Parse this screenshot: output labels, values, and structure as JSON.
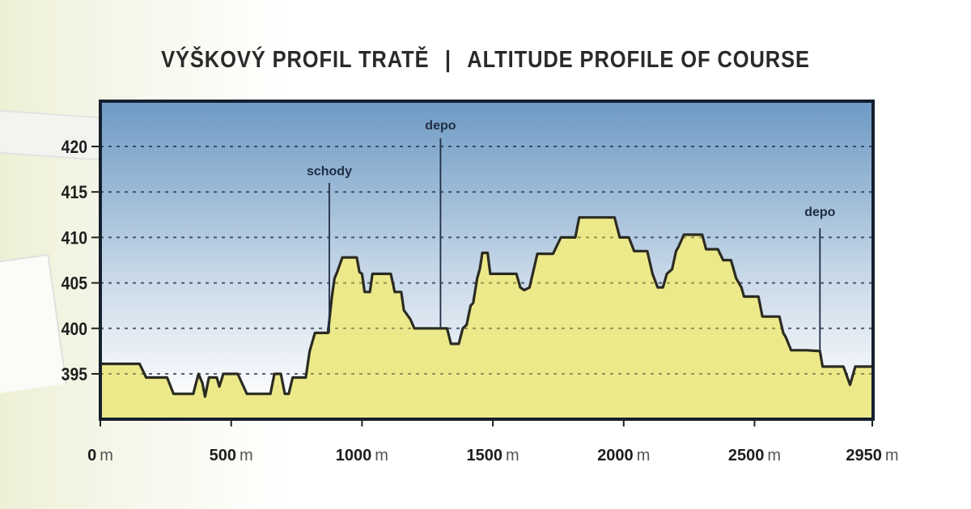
{
  "title": {
    "czech": "VÝŠKOVÝ PROFIL TRATĚ",
    "separator": "|",
    "english": "ALTITUDE PROFILE OF COURSE"
  },
  "colors": {
    "sky_top": "#6d9ac4",
    "sky_bottom": "#ffffff",
    "fill": "#ece98a",
    "line": "#2b2b22",
    "frame": "#15202e",
    "grid": "#1f2d44"
  },
  "chart_data": {
    "type": "area",
    "title": "VÝŠKOVÝ PROFIL TRATĚ | ALTITUDE PROFILE OF COURSE",
    "xlabel": "",
    "ylabel": "",
    "x_unit": "m",
    "xlim": [
      0,
      2950
    ],
    "ylim": [
      391,
      424
    ],
    "grid": "horizontal dashed",
    "x_ticks": [
      {
        "value": 0,
        "label": "0",
        "unit": "m"
      },
      {
        "value": 500,
        "label": "500",
        "unit": "m"
      },
      {
        "value": 1000,
        "label": "1000",
        "unit": "m"
      },
      {
        "value": 1500,
        "label": "1500",
        "unit": "m"
      },
      {
        "value": 2000,
        "label": "2000",
        "unit": "m"
      },
      {
        "value": 2500,
        "label": "2500",
        "unit": "m"
      },
      {
        "value": 2950,
        "label": "2950",
        "unit": "m"
      }
    ],
    "y_ticks": [
      395,
      400,
      405,
      410,
      415,
      420
    ],
    "annotations": [
      {
        "label": "schody",
        "x": 875,
        "label_y": 416.5,
        "line_top": 416,
        "line_bottom": 399.5
      },
      {
        "label": "depo",
        "x": 1300,
        "label_y": 421.5,
        "line_top": 420.9,
        "line_bottom": 400
      },
      {
        "label": "depo",
        "x": 2750,
        "label_y": 412.0,
        "line_top": 411,
        "line_bottom": 397.5
      }
    ],
    "profile": [
      [
        0,
        396.1
      ],
      [
        150,
        396.1
      ],
      [
        175,
        394.6
      ],
      [
        255,
        394.6
      ],
      [
        280,
        392.8
      ],
      [
        355,
        392.8
      ],
      [
        375,
        395.0
      ],
      [
        390,
        394.0
      ],
      [
        400,
        392.5
      ],
      [
        415,
        394.6
      ],
      [
        445,
        394.6
      ],
      [
        455,
        393.6
      ],
      [
        470,
        395.0
      ],
      [
        525,
        395.0
      ],
      [
        560,
        392.8
      ],
      [
        650,
        392.8
      ],
      [
        665,
        395.0
      ],
      [
        690,
        395.0
      ],
      [
        705,
        392.8
      ],
      [
        720,
        392.8
      ],
      [
        735,
        394.6
      ],
      [
        785,
        394.6
      ],
      [
        800,
        397.5
      ],
      [
        820,
        399.5
      ],
      [
        870,
        399.5
      ],
      [
        885,
        403.5
      ],
      [
        895,
        405.5
      ],
      [
        905,
        406.2
      ],
      [
        925,
        407.8
      ],
      [
        980,
        407.8
      ],
      [
        990,
        406.2
      ],
      [
        1000,
        406.0
      ],
      [
        1010,
        404.0
      ],
      [
        1030,
        404.0
      ],
      [
        1040,
        406.0
      ],
      [
        1110,
        406.0
      ],
      [
        1125,
        404.0
      ],
      [
        1150,
        404.0
      ],
      [
        1160,
        402.0
      ],
      [
        1185,
        401.0
      ],
      [
        1200,
        400.0
      ],
      [
        1325,
        400.0
      ],
      [
        1340,
        398.3
      ],
      [
        1370,
        398.3
      ],
      [
        1385,
        400.0
      ],
      [
        1400,
        400.4
      ],
      [
        1415,
        402.5
      ],
      [
        1425,
        402.8
      ],
      [
        1440,
        405.5
      ],
      [
        1450,
        406.5
      ],
      [
        1460,
        408.3
      ],
      [
        1480,
        408.3
      ],
      [
        1490,
        406.0
      ],
      [
        1590,
        406.0
      ],
      [
        1605,
        404.5
      ],
      [
        1620,
        404.2
      ],
      [
        1640,
        404.5
      ],
      [
        1670,
        408.2
      ],
      [
        1730,
        408.2
      ],
      [
        1760,
        410.0
      ],
      [
        1815,
        410.0
      ],
      [
        1830,
        412.2
      ],
      [
        1965,
        412.2
      ],
      [
        1985,
        410.0
      ],
      [
        2020,
        410.0
      ],
      [
        2040,
        408.5
      ],
      [
        2090,
        408.5
      ],
      [
        2110,
        406.0
      ],
      [
        2130,
        404.5
      ],
      [
        2150,
        404.5
      ],
      [
        2165,
        406.0
      ],
      [
        2185,
        406.5
      ],
      [
        2200,
        408.5
      ],
      [
        2210,
        409.0
      ],
      [
        2230,
        410.3
      ],
      [
        2300,
        410.3
      ],
      [
        2315,
        408.7
      ],
      [
        2360,
        408.7
      ],
      [
        2380,
        407.5
      ],
      [
        2410,
        407.5
      ],
      [
        2430,
        405.5
      ],
      [
        2450,
        404.5
      ],
      [
        2460,
        403.5
      ],
      [
        2515,
        403.5
      ],
      [
        2530,
        401.3
      ],
      [
        2595,
        401.3
      ],
      [
        2610,
        399.5
      ],
      [
        2620,
        399.0
      ],
      [
        2640,
        397.6
      ],
      [
        2700,
        397.6
      ],
      [
        2750,
        397.5
      ],
      [
        2760,
        395.8
      ],
      [
        2840,
        395.8
      ],
      [
        2865,
        393.8
      ],
      [
        2885,
        395.8
      ],
      [
        2950,
        395.8
      ]
    ]
  }
}
